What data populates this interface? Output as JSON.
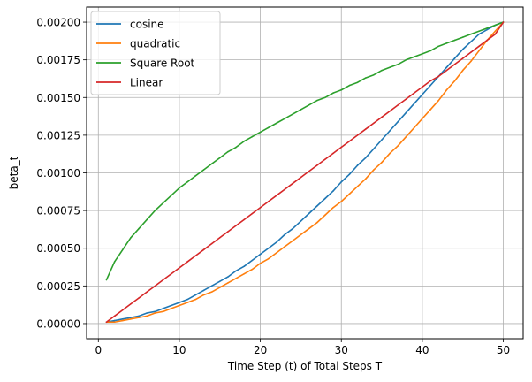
{
  "chart_data": {
    "type": "line",
    "title": "",
    "xlabel": "Time Step (t) of Total Steps T",
    "ylabel": "beta_t",
    "xlim": [
      -1.45,
      52.45
    ],
    "ylim": [
      -0.0001,
      0.0021
    ],
    "xticks": [
      0,
      10,
      20,
      30,
      40,
      50
    ],
    "xtick_labels": [
      "0",
      "10",
      "20",
      "30",
      "40",
      "50"
    ],
    "yticks": [
      0.0,
      0.00025,
      0.0005,
      0.00075,
      0.001,
      0.00125,
      0.0015,
      0.00175,
      0.002
    ],
    "ytick_labels": [
      "0.00000",
      "0.00025",
      "0.00050",
      "0.00075",
      "0.00100",
      "0.00125",
      "0.00150",
      "0.00175",
      "0.00200"
    ],
    "grid": true,
    "legend_position": "upper-left",
    "x": [
      1,
      2,
      3,
      4,
      5,
      6,
      7,
      8,
      9,
      10,
      11,
      12,
      13,
      14,
      15,
      16,
      17,
      18,
      19,
      20,
      21,
      22,
      23,
      24,
      25,
      26,
      27,
      28,
      29,
      30,
      31,
      32,
      33,
      34,
      35,
      36,
      37,
      38,
      39,
      40,
      41,
      42,
      43,
      44,
      45,
      46,
      47,
      48,
      49,
      50
    ],
    "series": [
      {
        "name": "cosine",
        "color": "#1f77b4",
        "values": [
          1e-05,
          2e-05,
          3e-05,
          4e-05,
          5e-05,
          7e-05,
          8e-05,
          0.0001,
          0.00012,
          0.00014,
          0.00016,
          0.00019,
          0.00022,
          0.00025,
          0.00028,
          0.00031,
          0.00035,
          0.00038,
          0.00042,
          0.00046,
          0.0005,
          0.00054,
          0.00059,
          0.00063,
          0.00068,
          0.00073,
          0.00078,
          0.00083,
          0.00088,
          0.00094,
          0.00099,
          0.00105,
          0.0011,
          0.00116,
          0.00122,
          0.00128,
          0.00134,
          0.0014,
          0.00146,
          0.00152,
          0.00158,
          0.00164,
          0.0017,
          0.00176,
          0.00182,
          0.00187,
          0.00192,
          0.00195,
          0.00198,
          0.002
        ]
      },
      {
        "name": "quadratic",
        "color": "#ff7f0e",
        "values": [
          1e-05,
          1e-05,
          2e-05,
          3e-05,
          4e-05,
          5e-05,
          7e-05,
          8e-05,
          0.0001,
          0.00012,
          0.00014,
          0.00016,
          0.00019,
          0.00021,
          0.00024,
          0.00027,
          0.0003,
          0.00033,
          0.00036,
          0.0004,
          0.00043,
          0.00047,
          0.00051,
          0.00055,
          0.00059,
          0.00063,
          0.00067,
          0.00072,
          0.00077,
          0.00081,
          0.00086,
          0.00091,
          0.00096,
          0.00102,
          0.00107,
          0.00113,
          0.00118,
          0.00124,
          0.0013,
          0.00136,
          0.00142,
          0.00148,
          0.00155,
          0.00161,
          0.00168,
          0.00174,
          0.00181,
          0.00188,
          0.00194,
          0.002
        ]
      },
      {
        "name": "Square Root",
        "color": "#2ca02c",
        "values": [
          0.00029,
          0.00041,
          0.00049,
          0.00057,
          0.00063,
          0.00069,
          0.00075,
          0.0008,
          0.00085,
          0.0009,
          0.00094,
          0.00098,
          0.00102,
          0.00106,
          0.0011,
          0.00114,
          0.00117,
          0.00121,
          0.00124,
          0.00127,
          0.0013,
          0.00133,
          0.00136,
          0.00139,
          0.00142,
          0.00145,
          0.00148,
          0.0015,
          0.00153,
          0.00155,
          0.00158,
          0.0016,
          0.00163,
          0.00165,
          0.00168,
          0.0017,
          0.00172,
          0.00175,
          0.00177,
          0.00179,
          0.00181,
          0.00184,
          0.00186,
          0.00188,
          0.0019,
          0.00192,
          0.00194,
          0.00196,
          0.00198,
          0.002
        ]
      },
      {
        "name": "Linear",
        "color": "#d62728",
        "values": [
          1e-05,
          5e-05,
          9e-05,
          0.00013,
          0.00017,
          0.00021,
          0.00025,
          0.00029,
          0.00033,
          0.00037,
          0.00041,
          0.00045,
          0.00049,
          0.00053,
          0.00057,
          0.00061,
          0.00065,
          0.00069,
          0.00073,
          0.00077,
          0.00081,
          0.00085,
          0.00089,
          0.00093,
          0.00097,
          0.00101,
          0.00105,
          0.00109,
          0.00113,
          0.00117,
          0.00121,
          0.00125,
          0.00129,
          0.00133,
          0.00137,
          0.00141,
          0.00145,
          0.00149,
          0.00153,
          0.00157,
          0.00161,
          0.00164,
          0.00168,
          0.00172,
          0.00176,
          0.0018,
          0.00184,
          0.00188,
          0.00192,
          0.002
        ]
      }
    ]
  }
}
